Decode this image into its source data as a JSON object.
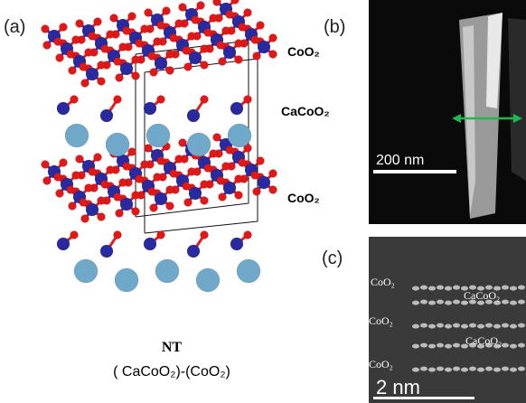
{
  "panel_a": {
    "label": "(a)",
    "layers": [
      "CoO₂",
      "CaCoO₂",
      "CoO₂"
    ],
    "name": "NT",
    "formula": "( CaCoO₂)-(CoO₂)"
  },
  "panel_b": {
    "label": "(b)",
    "scale_bar": "200 nm"
  },
  "panel_c": {
    "label": "(c)",
    "layers": [
      "CoO₂",
      "CaCoO₂",
      "CoO₂",
      "CaCoO₂",
      "CoO₂"
    ],
    "scale_bar": "2 nm"
  }
}
